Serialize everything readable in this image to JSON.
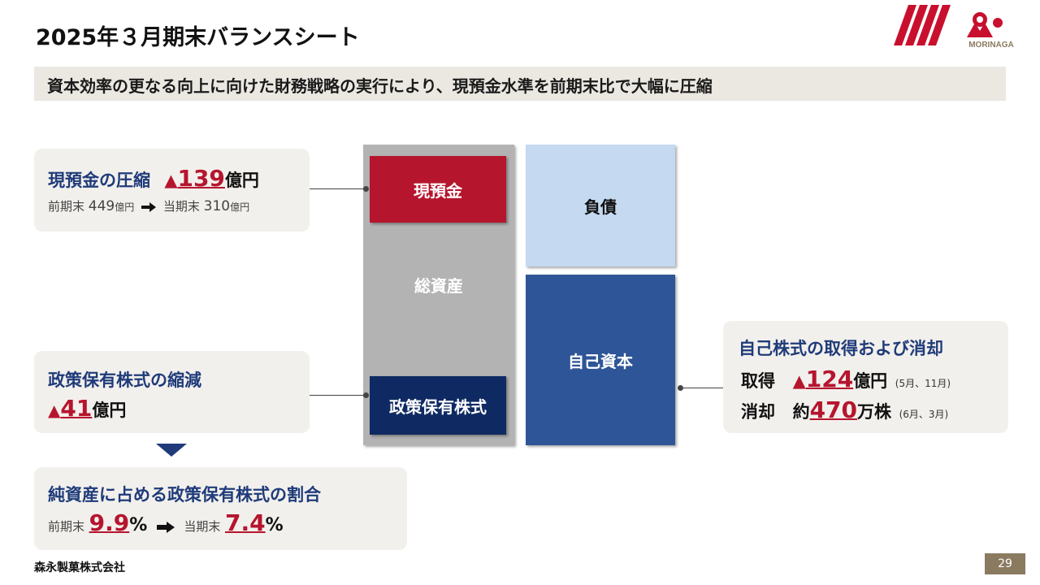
{
  "header": {
    "title": "2025年３月期末バランスシート",
    "subtitle": "資本効率の更なる向上に向けた財務戦略の実行により、現預金水準を前期末比で大幅に圧縮",
    "logo_text": "MORINAGA"
  },
  "left_panel_cash": {
    "heading": "現預金の圧縮",
    "marker": "▲",
    "amount": "139",
    "unit": "億円",
    "prev_label": "前期末",
    "prev_value": "449",
    "prev_unit": "億円",
    "curr_label": "当期末",
    "curr_value": "310",
    "curr_unit": "億円"
  },
  "left_panel_policy": {
    "heading": "政策保有株式の縮減",
    "marker": "▲",
    "amount": "41",
    "unit": "億円"
  },
  "ratio_panel": {
    "heading": "純資産に占める政策保有株式の割合",
    "prev_label": "前期末",
    "prev_value": "9.9",
    "curr_label": "当期末",
    "curr_value": "7.4",
    "percent": "%"
  },
  "balance_sheet": {
    "cash": "現預金",
    "total_assets": "総資産",
    "policy_shares": "政策保有株式",
    "liabilities": "負債",
    "equity": "自己資本"
  },
  "right_panel": {
    "heading": "自己株式の取得および消却",
    "acquire_label": "取得",
    "acquire_marker": "▲",
    "acquire_amount": "124",
    "acquire_unit": "億円",
    "acquire_note": "(5月、11月)",
    "cancel_label": "消却",
    "cancel_prefix": "約",
    "cancel_amount": "470",
    "cancel_unit": "万株",
    "cancel_note": "(6月、3月)"
  },
  "footer": {
    "company": "森永製菓株式会社",
    "page_number": "29"
  },
  "colors": {
    "brand_red": "#b6152e",
    "navy": "#1f3b7a",
    "dark_navy": "#0f2a63",
    "equity_blue": "#2e5597",
    "liability_blue": "#c5d9f1",
    "total_assets_gray": "#b3b3b3",
    "panel_bg": "#f2f0ec",
    "subtitle_bg": "#ebe8e2"
  }
}
